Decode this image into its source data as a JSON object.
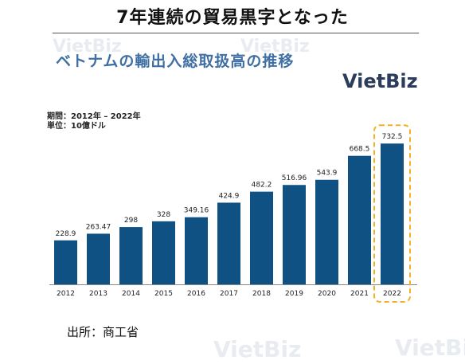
{
  "headline": "7年連続の貿易黒字となった",
  "subtitle": "ベトナムの輸出入総取扱高の推移",
  "logo": {
    "text_viet": "Viet",
    "text_biz": "Biz"
  },
  "watermark": "VietBiz",
  "period_label": "期間：2012年 – 2022年",
  "unit_label": "単位：10億ドル",
  "source": "出所：商工省",
  "colors": {
    "bar": "#0e5182",
    "highlight_border": "#f2b124",
    "title_blue": "#3f6fa3"
  },
  "chart_data": {
    "type": "bar",
    "categories": [
      "2012",
      "2013",
      "2014",
      "2015",
      "2016",
      "2017",
      "2018",
      "2019",
      "2020",
      "2021",
      "2022"
    ],
    "values": [
      228.9,
      263.47,
      298,
      328,
      349.16,
      424.9,
      482.2,
      516.96,
      543.9,
      668.5,
      732.5
    ],
    "value_labels": [
      "228.9",
      "263.47",
      "298",
      "328",
      "349.16",
      "424.9",
      "482.2",
      "516.96",
      "543.9",
      "668.5",
      "732.5"
    ],
    "ylim": [
      0,
      750
    ],
    "grid": false,
    "highlight_category": "2022"
  }
}
